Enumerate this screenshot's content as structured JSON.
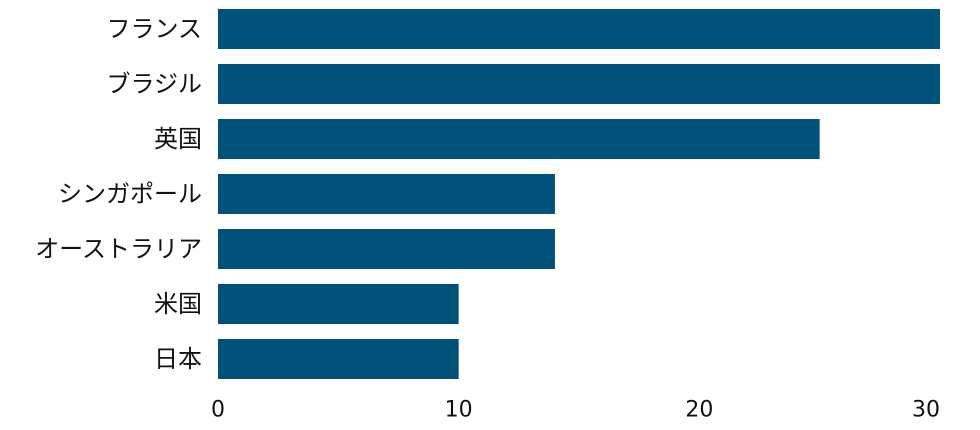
{
  "chart_data": {
    "type": "bar",
    "orientation": "horizontal",
    "categories": [
      "フランス",
      "ブラジル",
      "英国",
      "シンガポール",
      "オーストラリア",
      "米国",
      "日本"
    ],
    "values": [
      30,
      30,
      25,
      14,
      14,
      10,
      10
    ],
    "xlim": [
      0,
      30
    ],
    "x_ticks": [
      "0",
      "10",
      "20",
      "30"
    ],
    "bar_color": "#00527A",
    "title": "",
    "xlabel": "",
    "ylabel": "",
    "grid": false,
    "legend": "none"
  }
}
